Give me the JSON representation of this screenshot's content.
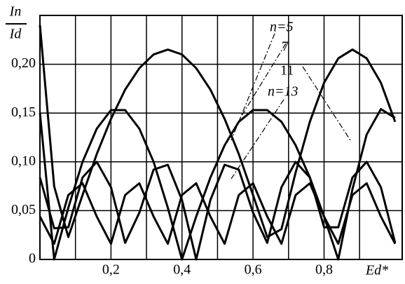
{
  "chart_data": {
    "type": "line",
    "y_label_top": "In",
    "y_label_bottom": "Id",
    "x_label": "Ed*",
    "annotations": [
      "n=5",
      "7",
      "11",
      "n=13"
    ],
    "x": [
      0,
      0.04,
      0.08,
      0.12,
      0.16,
      0.2,
      0.24,
      0.28,
      0.32,
      0.36,
      0.4,
      0.44,
      0.48,
      0.52,
      0.56,
      0.6,
      0.64,
      0.68,
      0.72,
      0.76,
      0.8,
      0.84,
      0.88,
      0.92,
      0.96,
      1.0
    ],
    "series": [
      {
        "name": "n=5",
        "color": "#000000",
        "values": [
          0.24,
          0.075,
          0.023,
          0.066,
          0.108,
          0.144,
          0.174,
          0.196,
          0.21,
          0.215,
          0.21,
          0.196,
          0.174,
          0.144,
          0.108,
          0.066,
          0.023,
          0.031,
          0.089,
          0.141,
          0.181,
          0.206,
          0.215,
          0.206,
          0.181,
          0.141
        ]
      },
      {
        "name": "7",
        "color": "#000000",
        "values": [
          0.15,
          0,
          0.053,
          0.1,
          0.134,
          0.153,
          0.153,
          0.134,
          0.1,
          0.053,
          0,
          0.044,
          0.084,
          0.117,
          0.141,
          0.153,
          0.153,
          0.141,
          0.117,
          0.084,
          0.044,
          0,
          0.072,
          0.128,
          0.154,
          0.145
        ]
      },
      {
        "name": "11",
        "color": "#000000",
        "values": [
          0.084,
          0.032,
          0.033,
          0.084,
          0.1,
          0.074,
          0.017,
          0.048,
          0.092,
          0.097,
          0.061,
          0,
          0.061,
          0.097,
          0.092,
          0.048,
          0.017,
          0.074,
          0.1,
          0.084,
          0.033,
          0.033,
          0.084,
          0.1,
          0.074,
          0.017
        ]
      },
      {
        "name": "n=13",
        "color": "#000000",
        "values": [
          0.044,
          0.016,
          0.066,
          0.078,
          0.044,
          0.016,
          0.066,
          0.078,
          0.044,
          0.016,
          0.066,
          0.078,
          0.044,
          0.016,
          0.066,
          0.078,
          0.044,
          0.016,
          0.066,
          0.078,
          0.044,
          0.016,
          0.066,
          0.078,
          0.044,
          0.016
        ]
      }
    ],
    "xlim": [
      0,
      1.02
    ],
    "ylim": [
      0,
      0.25
    ],
    "xticks": [
      {
        "value": 0.2,
        "label": "0,2"
      },
      {
        "value": 0.4,
        "label": "0,4"
      },
      {
        "value": 0.6,
        "label": "0,6"
      },
      {
        "value": 0.8,
        "label": "0,8"
      }
    ],
    "x_minor_grid": [
      0.1,
      0.3,
      0.5,
      0.7,
      0.9
    ],
    "yticks": [
      0,
      {
        "value": 0.05,
        "label": "0,05"
      },
      {
        "value": 0.1,
        "label": "0,10"
      },
      {
        "value": 0.15,
        "label": "0,15"
      },
      {
        "value": 0.2,
        "label": "0,20"
      }
    ],
    "grid": true
  }
}
